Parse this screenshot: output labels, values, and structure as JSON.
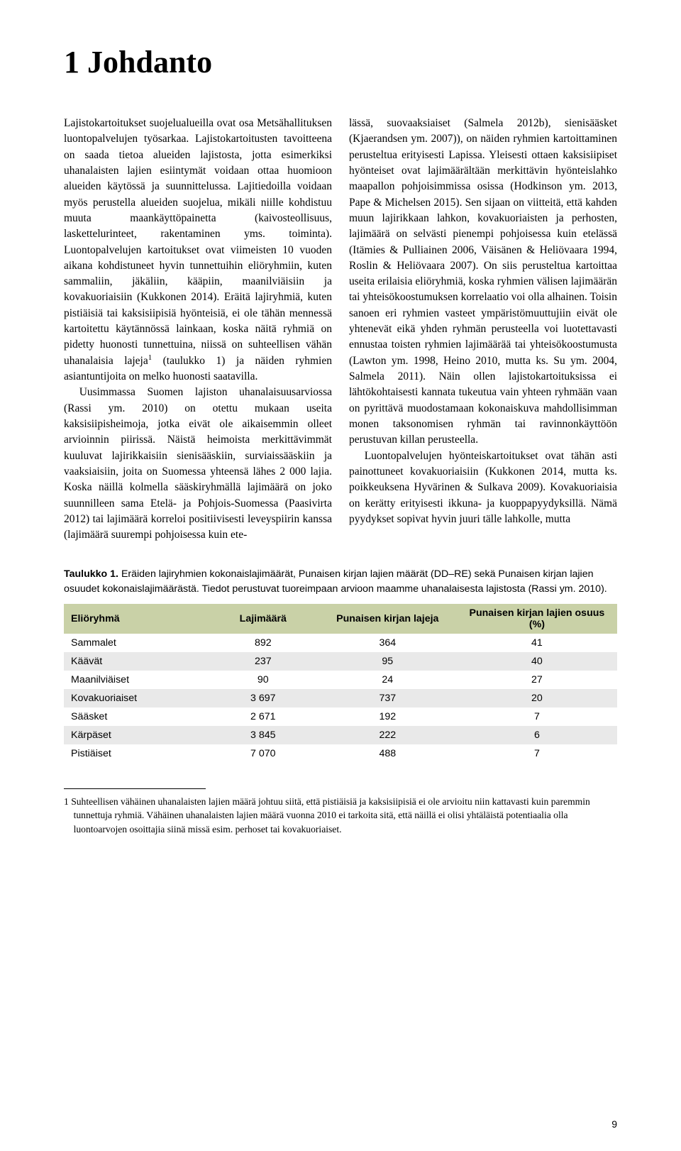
{
  "title": "1 Johdanto",
  "body": {
    "col1": {
      "p1": "Lajistokartoitukset suojelualueilla ovat osa Metsähallituksen luontopalvelujen työsarkaa. Lajistokartoitusten tavoitteena on saada tietoa alueiden lajistosta, jotta esimerkiksi uhanalaisten lajien esiintymät voidaan ottaa huomioon alueiden käytössä ja suunnittelussa. Lajitiedoilla voidaan myös perustella alueiden suojelua, mikäli niille kohdistuu muuta maankäyttöpainetta (kaivosteollisuus, laskettelurinteet, rakentaminen yms. toiminta). Luontopalvelujen kartoitukset ovat viimeisten 10 vuoden aikana kohdistuneet hyvin tunnettuihin eliöryhmiin, kuten sammaliin, jäkäliin, kääpiin, maanilviäisiin ja kovakuoriaisiin (Kukkonen 2014). Eräitä lajiryhmiä, kuten pistiäisiä tai kaksisiipisiä hyönteisiä, ei ole tähän mennessä kartoitettu käytännössä lainkaan, koska näitä ryhmiä on pidetty huonosti tunnettuina, niissä on suhteellisen vähän uhanalaisia lajeja",
      "p1_sup": "1",
      "p1_tail": " (taulukko 1) ja näiden ryhmien asiantuntijoita on melko huonosti saatavilla.",
      "p2": "Uusimmassa Suomen lajiston uhanalaisuusarviossa (Rassi ym. 2010) on otettu mukaan useita kaksisiipisheimoja, jotka eivät ole aikaisemmin olleet arvioinnin piirissä. Näistä heimoista merkittävimmät kuuluvat lajirikkaisiin sienisääskiin, surviaissääskiin ja vaaksiaisiin, joita on Suomessa yhteensä lähes 2 000 lajia. Koska näillä kolmella sääskiryhmällä lajimäärä on joko suunnilleen sama Etelä- ja Pohjois-Suomessa (Paasivirta 2012) tai lajimäärä korreloi positiivisesti leveyspiirin kanssa (lajimäärä suurempi pohjoisessa kuin ete-"
    },
    "col2": {
      "p1": "lässä, suovaaksiaiset (Salmela 2012b), sienisääsket (Kjaerandsen ym. 2007)), on näiden ryhmien kartoittaminen perusteltua erityisesti Lapissa. Yleisesti ottaen kaksisiipiset hyönteiset ovat lajimäärältään merkittävin hyönteislahko maapallon pohjoisimmissa osissa (Hodkinson ym. 2013, Pape & Michelsen 2015). Sen sijaan on viitteitä, että kahden muun lajirikkaan lahkon, kovakuoriaisten ja perhosten, lajimäärä on selvästi pienempi pohjoisessa kuin etelässä (Itämies & Pulliainen 2006, Väisänen & Heliövaara 1994, Roslin & Heliövaara 2007). On siis perusteltua kartoittaa useita erilaisia eliöryhmiä, koska ryhmien välisen lajimäärän tai yhteisökoostumuksen korrelaatio voi olla alhainen. Toisin sanoen eri ryhmien vasteet ympäristömuuttujiin eivät ole yhtenevät eikä yhden ryhmän perusteella voi luotettavasti ennustaa toisten ryhmien lajimäärää tai yhteisökoostumusta (Lawton ym. 1998, Heino 2010, mutta ks. Su ym. 2004, Salmela 2011). Näin ollen lajistokartoituksissa ei lähtökohtaisesti kannata tukeutua vain yhteen ryhmään vaan on pyrittävä muodostamaan kokonaiskuva mahdollisimman monen taksonomisen ryhmän tai ravinnonkäyttöön perustuvan killan perusteella.",
      "p2": "Luontopalvelujen hyönteiskartoitukset ovat tähän asti painottuneet kovakuoriaisiin (Kukkonen 2014, mutta ks. poikkeuksena Hyvärinen & Sulkava 2009). Kovakuoriaisia on kerätty erityisesti ikkuna- ja kuoppapyydyksillä. Nämä pyydykset sopivat hyvin juuri tälle lahkolle, mutta"
    }
  },
  "table": {
    "caption_lead": "Taulukko 1.",
    "caption_text": " Eräiden lajiryhmien kokonaislajimäärät, Punaisen kirjan lajien määrät (DD–RE) sekä Punaisen kirjan lajien osuudet kokonaislajimäärästä. Tiedot perustuvat tuoreimpaan arvioon maamme uhanalaisesta lajistosta (Rassi ym. 2010).",
    "headers": [
      "Eliöryhmä",
      "Lajimäärä",
      "Punaisen kirjan lajeja",
      "Punaisen kirjan lajien osuus (%)"
    ],
    "header_bg": "#c9d1a7",
    "row_alt_bg": "#e9e9e9",
    "rows": [
      {
        "c0": "Sammalet",
        "c1": "892",
        "c2": "364",
        "c3": "41"
      },
      {
        "c0": "Käävät",
        "c1": "237",
        "c2": "95",
        "c3": "40"
      },
      {
        "c0": "Maanilviäiset",
        "c1": "90",
        "c2": "24",
        "c3": "27"
      },
      {
        "c0": "Kovakuoriaiset",
        "c1": "3 697",
        "c2": "737",
        "c3": "20"
      },
      {
        "c0": "Sääsket",
        "c1": "2 671",
        "c2": "192",
        "c3": "7"
      },
      {
        "c0": "Kärpäset",
        "c1": "3 845",
        "c2": "222",
        "c3": "6"
      },
      {
        "c0": "Pistiäiset",
        "c1": "7 070",
        "c2": "488",
        "c3": "7"
      }
    ]
  },
  "footnote": {
    "marker": "1",
    "text": "Suhteellisen vähäinen uhanalaisten lajien määrä johtuu siitä, että pistiäisiä ja kaksisiipisiä ei ole arvioitu niin kattavasti kuin paremmin tunnettuja ryhmiä. Vähäinen uhanalaisten lajien määrä vuonna 2010 ei tarkoita sitä, että näillä ei olisi yhtäläistä potentiaalia olla luontoarvojen osoittajia siinä missä esim. perhoset tai kovakuoriaiset."
  },
  "page_number": "9",
  "colors": {
    "text": "#000000",
    "background": "#ffffff"
  },
  "fonts": {
    "body_family": "Georgia, serif",
    "ui_family": "Arial, sans-serif",
    "title_size_pt": 33,
    "body_size_pt": 11.6,
    "table_size_pt": 10.7,
    "footnote_size_pt": 10.2
  }
}
